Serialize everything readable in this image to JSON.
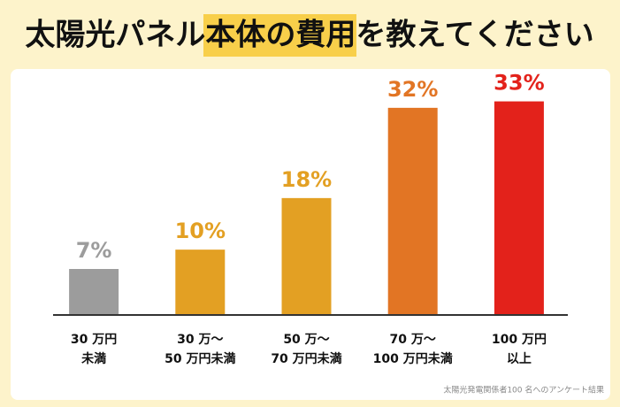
{
  "chart_data": {
    "type": "bar",
    "title": "太陽光パネル本体の費用を教えてください",
    "categories": [
      [
        "30 万円",
        "未満"
      ],
      [
        "30 万〜",
        "50 万円未満"
      ],
      [
        "50 万〜",
        "70 万円未満"
      ],
      [
        "70 万〜",
        "100 万円未満"
      ],
      [
        "100 万円",
        "以上"
      ]
    ],
    "values": [
      7,
      10,
      18,
      32,
      33
    ],
    "value_labels": [
      "7%",
      "10%",
      "18%",
      "32%",
      "33%"
    ],
    "colors": [
      "#9c9c9c",
      "#e3a023",
      "#e3a023",
      "#e27524",
      "#e3221b"
    ],
    "ylim": [
      0,
      35
    ],
    "source": "太陽光発電関係者100 名へのアンケート結果"
  }
}
